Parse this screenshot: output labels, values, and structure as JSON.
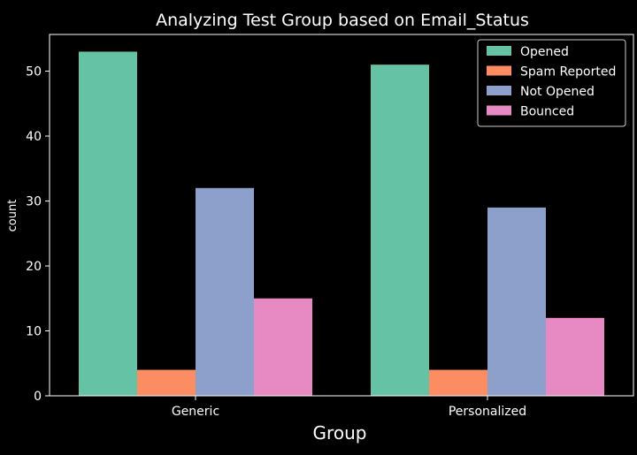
{
  "chart_data": {
    "type": "bar",
    "title": "Analyzing Test Group based on Email_Status",
    "xlabel": "Group",
    "ylabel": "count",
    "categories": [
      "Generic",
      "Personalized"
    ],
    "series": [
      {
        "name": "Opened",
        "values": [
          53,
          51
        ],
        "color": "#66c2a5"
      },
      {
        "name": "Spam Reported",
        "values": [
          4,
          4
        ],
        "color": "#fc8d62"
      },
      {
        "name": "Not Opened",
        "values": [
          32,
          29
        ],
        "color": "#8da0cb"
      },
      {
        "name": "Bounced",
        "values": [
          15,
          12
        ],
        "color": "#e78ac3"
      }
    ],
    "ylim": [
      0,
      55.65
    ],
    "yticks": [
      0,
      10,
      20,
      30,
      40,
      50
    ],
    "grid": false,
    "legend_position": "top-right",
    "background": "#000000",
    "foreground": "#ffffff"
  }
}
